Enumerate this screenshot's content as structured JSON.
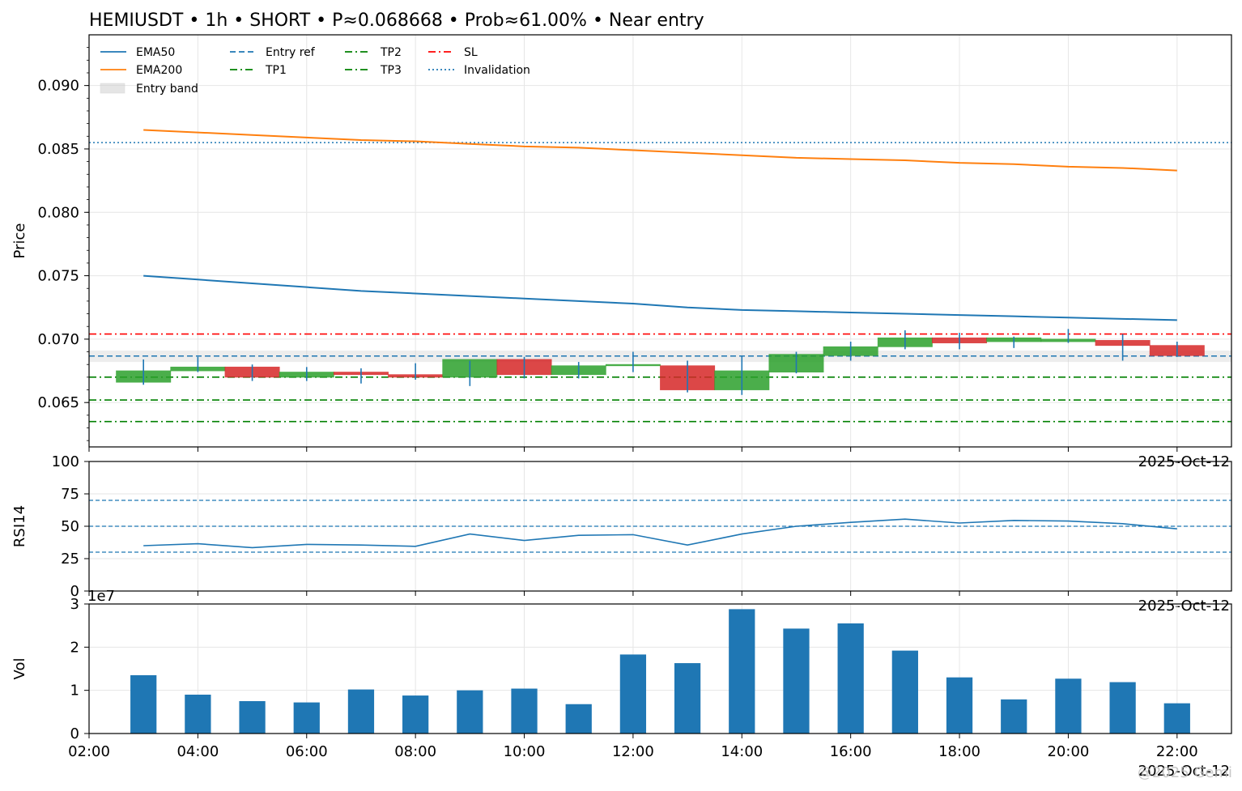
{
  "title": "HEMIUSDT • 1h • SHORT • P≈0.068668 • Prob≈61.00% • Near entry",
  "watermark": "@2025 Gemi",
  "colors": {
    "ema50": "#1f77b4",
    "ema200": "#ff7f0e",
    "entry": "#1f77b4",
    "tp": "#008000",
    "sl": "#ff0000",
    "invalidation": "#1f77b4",
    "up": "#2ca02c",
    "down": "#d62728",
    "volume": "#1f77b4",
    "grid": "#e6e6e6"
  },
  "chart_data": [
    {
      "type": "candlestick",
      "name": "price",
      "ylabel": "Price",
      "date_label": "2025-Oct-12",
      "ylim": [
        0.0615,
        0.094
      ],
      "yticks": [
        "0.065",
        "0.070",
        "0.075",
        "0.080",
        "0.085",
        "0.090"
      ],
      "ytick_values": [
        0.065,
        0.07,
        0.075,
        0.08,
        0.085,
        0.09
      ],
      "xlim": [
        2,
        23
      ],
      "candles": [
        {
          "t": 3,
          "o": 0.0666,
          "h": 0.0684,
          "l": 0.0664,
          "c": 0.0675
        },
        {
          "t": 4,
          "o": 0.0675,
          "h": 0.0686,
          "l": 0.0674,
          "c": 0.0678
        },
        {
          "t": 5,
          "o": 0.0678,
          "h": 0.068,
          "l": 0.0667,
          "c": 0.067
        },
        {
          "t": 6,
          "o": 0.067,
          "h": 0.0678,
          "l": 0.0667,
          "c": 0.0674
        },
        {
          "t": 7,
          "o": 0.0674,
          "h": 0.0677,
          "l": 0.0665,
          "c": 0.0672
        },
        {
          "t": 8,
          "o": 0.0672,
          "h": 0.0681,
          "l": 0.0668,
          "c": 0.067
        },
        {
          "t": 9,
          "o": 0.067,
          "h": 0.0683,
          "l": 0.0663,
          "c": 0.0684
        },
        {
          "t": 10,
          "o": 0.0684,
          "h": 0.0686,
          "l": 0.0669,
          "c": 0.0672
        },
        {
          "t": 11,
          "o": 0.0672,
          "h": 0.0682,
          "l": 0.0669,
          "c": 0.0679
        },
        {
          "t": 12,
          "o": 0.0679,
          "h": 0.069,
          "l": 0.0674,
          "c": 0.068
        },
        {
          "t": 13,
          "o": 0.0679,
          "h": 0.0683,
          "l": 0.0658,
          "c": 0.066
        },
        {
          "t": 14,
          "o": 0.066,
          "h": 0.0687,
          "l": 0.0656,
          "c": 0.0675
        },
        {
          "t": 15,
          "o": 0.0674,
          "h": 0.069,
          "l": 0.0673,
          "c": 0.0688
        },
        {
          "t": 16,
          "o": 0.0687,
          "h": 0.0698,
          "l": 0.0683,
          "c": 0.0694
        },
        {
          "t": 17,
          "o": 0.0694,
          "h": 0.0707,
          "l": 0.0692,
          "c": 0.0701
        },
        {
          "t": 18,
          "o": 0.0701,
          "h": 0.0705,
          "l": 0.0692,
          "c": 0.0697
        },
        {
          "t": 19,
          "o": 0.0698,
          "h": 0.0702,
          "l": 0.0693,
          "c": 0.0701
        },
        {
          "t": 20,
          "o": 0.0698,
          "h": 0.0708,
          "l": 0.0697,
          "c": 0.07
        },
        {
          "t": 21,
          "o": 0.0699,
          "h": 0.0704,
          "l": 0.0683,
          "c": 0.0695
        },
        {
          "t": 22,
          "o": 0.0695,
          "h": 0.0698,
          "l": 0.0686,
          "c": 0.0687
        }
      ],
      "lines": [
        {
          "name": "EMA50",
          "style": "solid",
          "x": [
            3,
            4,
            5,
            6,
            7,
            8,
            9,
            10,
            11,
            12,
            13,
            14,
            15,
            16,
            17,
            18,
            19,
            20,
            21,
            22
          ],
          "y": [
            0.075,
            0.0747,
            0.0744,
            0.0741,
            0.0738,
            0.0736,
            0.0734,
            0.0732,
            0.073,
            0.0728,
            0.0725,
            0.0723,
            0.0722,
            0.0721,
            0.072,
            0.0719,
            0.0718,
            0.0717,
            0.0716,
            0.0715
          ]
        },
        {
          "name": "EMA200",
          "style": "solid",
          "x": [
            3,
            4,
            5,
            6,
            7,
            8,
            9,
            10,
            11,
            12,
            13,
            14,
            15,
            16,
            17,
            18,
            19,
            20,
            21,
            22
          ],
          "y": [
            0.0865,
            0.0863,
            0.0861,
            0.0859,
            0.0857,
            0.0856,
            0.0854,
            0.0852,
            0.0851,
            0.0849,
            0.0847,
            0.0845,
            0.0843,
            0.0842,
            0.0841,
            0.0839,
            0.0838,
            0.0836,
            0.0835,
            0.0833
          ]
        }
      ],
      "levels": [
        {
          "name": "Entry ref",
          "value": 0.068668,
          "style": "dashed"
        },
        {
          "name": "TP1",
          "value": 0.067,
          "style": "dashdot"
        },
        {
          "name": "TP2",
          "value": 0.0652,
          "style": "dashdot"
        },
        {
          "name": "TP3",
          "value": 0.0635,
          "style": "dashdot"
        },
        {
          "name": "SL",
          "value": 0.0704,
          "style": "dashdot"
        },
        {
          "name": "Invalidation",
          "value": 0.0855,
          "style": "dotted"
        }
      ],
      "entry_band": {
        "name": "Entry band",
        "low": 0.0682,
        "high": 0.0691
      },
      "legend": {
        "placement": "upper-left",
        "entries": [
          "EMA50",
          "EMA200",
          "Entry band",
          "Entry ref",
          "TP1",
          "TP2",
          "TP3",
          "SL",
          "Invalidation"
        ]
      }
    },
    {
      "type": "line",
      "name": "rsi",
      "ylabel": "RSI14",
      "date_label": "2025-Oct-12",
      "ylim": [
        0,
        100
      ],
      "yticks": [
        "0",
        "25",
        "50",
        "75",
        "100"
      ],
      "ytick_values": [
        0,
        25,
        50,
        75,
        100
      ],
      "reference_lines": [
        30,
        50,
        70
      ],
      "x": [
        3,
        4,
        5,
        6,
        7,
        8,
        9,
        10,
        11,
        12,
        13,
        14,
        15,
        16,
        17,
        18,
        19,
        20,
        21,
        22
      ],
      "y": [
        35,
        36.5,
        33.5,
        36,
        35.5,
        34.5,
        44,
        39,
        43,
        43.5,
        35.5,
        44,
        50,
        53,
        55.5,
        52.5,
        54.5,
        54,
        52,
        48
      ]
    },
    {
      "type": "bar",
      "name": "volume",
      "ylabel": "Vol",
      "multiplier": "1e7",
      "date_label": "2025-Oct-12",
      "ylim": [
        0,
        3
      ],
      "yticks": [
        "0",
        "1",
        "2",
        "3"
      ],
      "ytick_values": [
        0,
        1,
        2,
        3
      ],
      "x": [
        3,
        4,
        5,
        6,
        7,
        8,
        9,
        10,
        11,
        12,
        13,
        14,
        15,
        16,
        17,
        18,
        19,
        20,
        21,
        22
      ],
      "values": [
        1.35,
        0.9,
        0.75,
        0.72,
        1.02,
        0.88,
        1.0,
        1.04,
        0.68,
        1.83,
        1.63,
        2.88,
        2.43,
        2.55,
        1.92,
        1.3,
        0.79,
        1.27,
        1.19,
        0.7
      ]
    }
  ],
  "xaxis": {
    "ticks": [
      {
        "t": 2,
        "label": "02:00"
      },
      {
        "t": 4,
        "label": "04:00"
      },
      {
        "t": 6,
        "label": "06:00"
      },
      {
        "t": 8,
        "label": "08:00"
      },
      {
        "t": 10,
        "label": "10:00"
      },
      {
        "t": 12,
        "label": "12:00"
      },
      {
        "t": 14,
        "label": "14:00"
      },
      {
        "t": 16,
        "label": "16:00"
      },
      {
        "t": 18,
        "label": "18:00"
      },
      {
        "t": 20,
        "label": "20:00"
      },
      {
        "t": 22,
        "label": "22:00"
      }
    ]
  }
}
